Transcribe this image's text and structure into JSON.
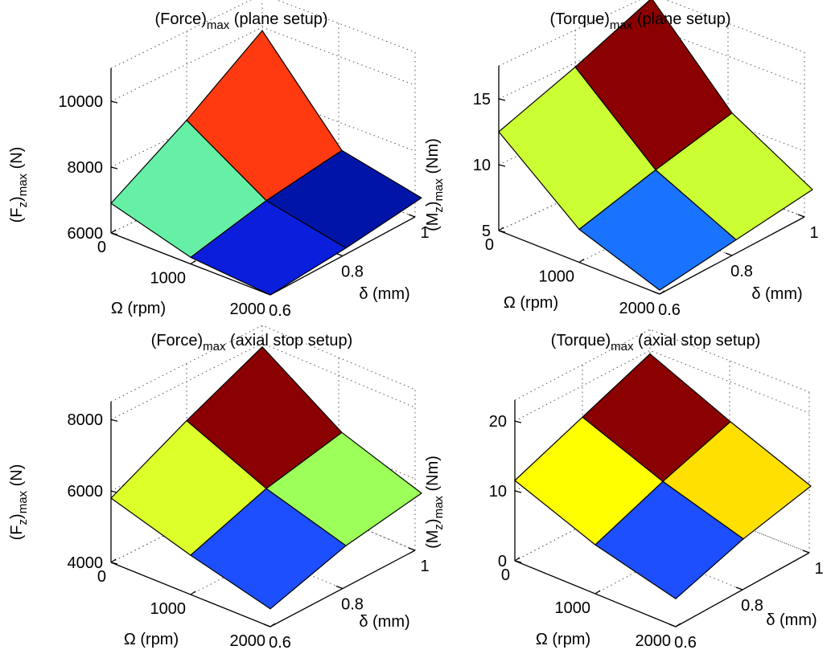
{
  "chart_data": [
    {
      "type": "surface3d",
      "title": "(Force)",
      "title_sub": "max",
      "title_suffix": " (plane setup)",
      "zlabel": {
        "main": "(F",
        "sub1": "z",
        "mid": ")",
        "sub2": "max",
        "tail": " (N)"
      },
      "xlabel": "Ω (rpm)",
      "ylabel": "δ (mm)",
      "x": [
        0,
        1000,
        2000
      ],
      "y": [
        0.6,
        0.8,
        1
      ],
      "x_ticks": [
        "0",
        "1000",
        "2000"
      ],
      "y_ticks": [
        "0.6",
        "0.8",
        "1"
      ],
      "z_ticks": [
        "6000",
        "8000",
        "10000"
      ],
      "z_tick_values": [
        6000,
        8000,
        10000
      ],
      "zlim": [
        6000,
        11000
      ],
      "z": [
        [
          6900,
          8300,
          9900
        ],
        [
          6200,
          6800,
          7200
        ],
        [
          6000,
          6300,
          6700
        ]
      ],
      "colors": [
        [
          "#66f0a6",
          "#ff3a10"
        ],
        [
          "#0a1edc",
          "#0015a8"
        ]
      ]
    },
    {
      "type": "surface3d",
      "title": "(Torque)",
      "title_sub": "max",
      "title_suffix": " (plane setup)",
      "zlabel": {
        "main": "(M",
        "sub1": "z",
        "mid": ")",
        "sub2": "max",
        "tail": " (Nm)"
      },
      "xlabel": "Ω (rpm)",
      "ylabel": "δ (mm)",
      "x": [
        0,
        1000,
        2000
      ],
      "y": [
        0.6,
        0.8,
        1
      ],
      "x_ticks": [
        "0",
        "1000",
        "2000"
      ],
      "y_ticks": [
        "0.6",
        "0.8",
        "1"
      ],
      "z_ticks": [
        "5",
        "10",
        "15"
      ],
      "z_tick_values": [
        5,
        10,
        15
      ],
      "zlim": [
        5,
        17.5
      ],
      "z": [
        [
          12.5,
          14.7,
          17.2
        ],
        [
          7.5,
          9.3,
          10.9
        ],
        [
          5.3,
          6.4,
          7.5
        ]
      ],
      "colors": [
        [
          "#8b0000",
          "#8b0000"
        ],
        [
          "#ccff33",
          "#ccff33"
        ],
        [
          "#1a73ff",
          "#1a73ff"
        ]
      ],
      "colors_rows": 2
    },
    {
      "type": "surface3d",
      "title": "(Force)",
      "title_sub": "max",
      "title_suffix": " (axial stop setup)",
      "zlabel": {
        "main": "(F",
        "sub1": "z",
        "mid": ")",
        "sub2": "max",
        "tail": " (N)"
      },
      "xlabel": "Ω (rpm)",
      "ylabel": "δ (mm)",
      "x": [
        0,
        1000,
        2000
      ],
      "y": [
        0.6,
        0.8,
        1
      ],
      "x_ticks": [
        "0",
        "1000",
        "2000"
      ],
      "y_ticks": [
        "0.6",
        "0.8",
        "1"
      ],
      "z_ticks": [
        "4000",
        "6000",
        "8000"
      ],
      "z_tick_values": [
        4000,
        6000,
        8000
      ],
      "zlim": [
        4000,
        8500
      ],
      "z": [
        [
          5800,
          6900,
          7900
        ],
        [
          5100,
          5900,
          6400
        ],
        [
          4500,
          5200,
          5600
        ]
      ],
      "colors": [
        [
          "#ffc21a",
          "#8b0000"
        ],
        [
          "#ddff2a",
          "#9dff5a"
        ],
        [
          "#1e4fff",
          "#19c8f5"
        ]
      ],
      "colors_rows": 2
    },
    {
      "type": "surface3d",
      "title": "(Torque)",
      "title_sub": "max",
      "title_suffix": " (axial stop setup)",
      "zlabel": {
        "main": "(M",
        "sub1": "z",
        "mid": ")",
        "sub2": "max",
        "tail": " (Nm)"
      },
      "xlabel": "Ω (rpm)",
      "ylabel": "δ (mm)",
      "x": [
        0,
        1000,
        2000
      ],
      "y": [
        0.6,
        0.8,
        1
      ],
      "x_ticks": [
        "0",
        "1000",
        "2000"
      ],
      "y_ticks": [
        "0.6",
        "0.8",
        "1"
      ],
      "z_ticks": [
        "0",
        "10",
        "20"
      ],
      "z_tick_values": [
        0,
        10,
        20
      ],
      "zlim": [
        0,
        23
      ],
      "z": [
        [
          11.5,
          15.5,
          19.5
        ],
        [
          7.0,
          11.0,
          14.5
        ],
        [
          4.0,
          7.5,
          10.0
        ]
      ],
      "colors": [
        [
          "#8b0000",
          "#8b0000"
        ],
        [
          "#ffff00",
          "#ffe000"
        ],
        [
          "#1e4fff",
          "#1aa3ff"
        ]
      ],
      "colors_rows": 2
    }
  ]
}
